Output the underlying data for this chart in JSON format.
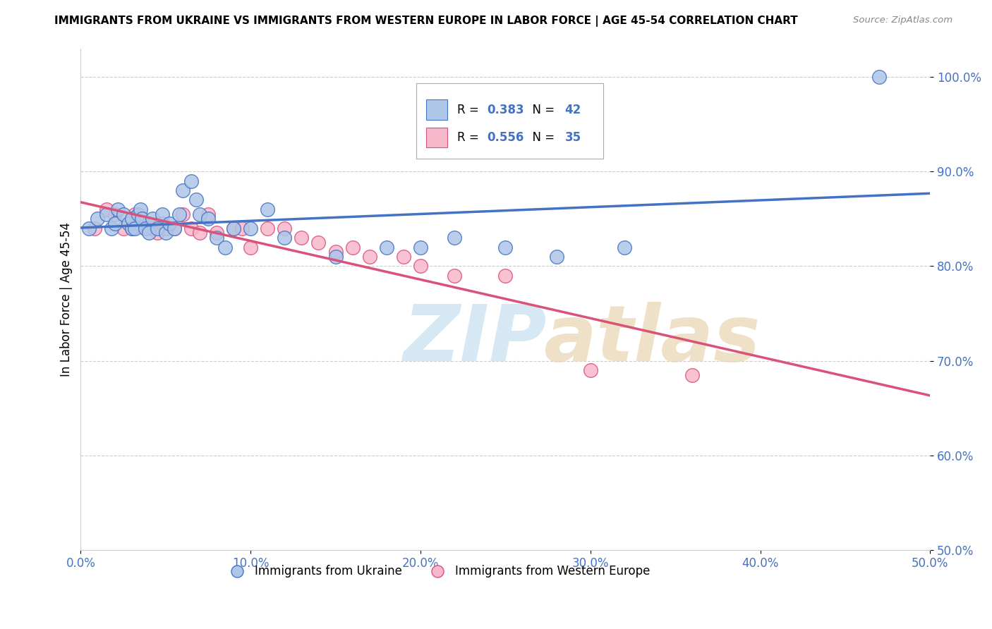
{
  "title": "IMMIGRANTS FROM UKRAINE VS IMMIGRANTS FROM WESTERN EUROPE IN LABOR FORCE | AGE 45-54 CORRELATION CHART",
  "source": "Source: ZipAtlas.com",
  "ylabel": "In Labor Force | Age 45-54",
  "xlim": [
    0.0,
    0.5
  ],
  "ylim": [
    0.5,
    1.03
  ],
  "xtick_labels": [
    "0.0%",
    "10.0%",
    "20.0%",
    "30.0%",
    "40.0%",
    "50.0%"
  ],
  "xtick_values": [
    0.0,
    0.1,
    0.2,
    0.3,
    0.4,
    0.5
  ],
  "ytick_labels": [
    "50.0%",
    "60.0%",
    "70.0%",
    "80.0%",
    "90.0%",
    "100.0%"
  ],
  "ytick_values": [
    0.5,
    0.6,
    0.7,
    0.8,
    0.9,
    1.0
  ],
  "R_ukraine": 0.383,
  "N_ukraine": 42,
  "R_western": 0.556,
  "N_western": 35,
  "ukraine_color": "#aec6e8",
  "western_color": "#f7b8cc",
  "ukraine_line_color": "#4472c4",
  "western_line_color": "#d9527a",
  "legend_ukraine": "Immigrants from Ukraine",
  "legend_western": "Immigrants from Western Europe",
  "background_color": "#ffffff",
  "grid_color": "#cccccc",
  "ukraine_x": [
    0.005,
    0.01,
    0.015,
    0.018,
    0.02,
    0.022,
    0.025,
    0.028,
    0.03,
    0.03,
    0.032,
    0.034,
    0.035,
    0.036,
    0.038,
    0.04,
    0.042,
    0.045,
    0.048,
    0.05,
    0.052,
    0.055,
    0.058,
    0.06,
    0.065,
    0.068,
    0.07,
    0.075,
    0.08,
    0.085,
    0.09,
    0.1,
    0.11,
    0.12,
    0.15,
    0.18,
    0.2,
    0.22,
    0.25,
    0.28,
    0.32,
    0.47
  ],
  "ukraine_y": [
    0.84,
    0.85,
    0.855,
    0.84,
    0.845,
    0.86,
    0.855,
    0.845,
    0.84,
    0.85,
    0.84,
    0.855,
    0.86,
    0.85,
    0.84,
    0.835,
    0.85,
    0.84,
    0.855,
    0.835,
    0.845,
    0.84,
    0.855,
    0.88,
    0.89,
    0.87,
    0.855,
    0.85,
    0.83,
    0.82,
    0.84,
    0.84,
    0.86,
    0.83,
    0.81,
    0.82,
    0.82,
    0.83,
    0.82,
    0.81,
    0.82,
    1.0
  ],
  "western_x": [
    0.008,
    0.015,
    0.02,
    0.025,
    0.03,
    0.032,
    0.035,
    0.038,
    0.04,
    0.042,
    0.045,
    0.048,
    0.05,
    0.055,
    0.06,
    0.065,
    0.07,
    0.075,
    0.08,
    0.09,
    0.095,
    0.1,
    0.11,
    0.12,
    0.13,
    0.14,
    0.15,
    0.16,
    0.17,
    0.19,
    0.2,
    0.22,
    0.25,
    0.3,
    0.36
  ],
  "western_y": [
    0.84,
    0.86,
    0.855,
    0.84,
    0.84,
    0.855,
    0.845,
    0.84,
    0.845,
    0.84,
    0.835,
    0.845,
    0.84,
    0.84,
    0.855,
    0.84,
    0.835,
    0.855,
    0.835,
    0.84,
    0.84,
    0.82,
    0.84,
    0.84,
    0.83,
    0.825,
    0.815,
    0.82,
    0.81,
    0.81,
    0.8,
    0.79,
    0.79,
    0.69,
    0.685
  ]
}
